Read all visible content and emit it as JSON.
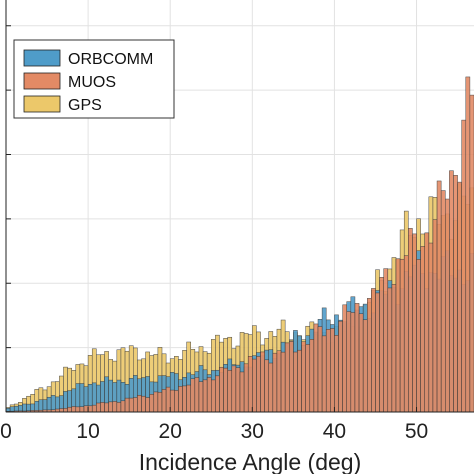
{
  "chart_data": {
    "type": "bar",
    "xlabel": "Incidence Angle (deg)",
    "ylabel": "",
    "title": "",
    "bin_width_deg": 0.5,
    "xlim": [
      0,
      57
    ],
    "ylim": [
      0,
      6.4
    ],
    "x_ticks": [
      0,
      10,
      20,
      30,
      40,
      50
    ],
    "x_tick_labels": [
      "0",
      "10",
      "20",
      "30",
      "40",
      "50"
    ],
    "y_ticks": [
      1,
      2,
      3,
      4,
      5,
      6
    ],
    "grid": true,
    "legend_position": "top-left",
    "series": [
      {
        "name": "ORBCOMM",
        "color": "#4f9cc9",
        "x": [
          0,
          5,
          10,
          15,
          20,
          25,
          30,
          35,
          40,
          45,
          50,
          55
        ],
        "values": [
          0.05,
          0.2,
          0.45,
          0.5,
          0.55,
          0.65,
          0.8,
          1.1,
          1.5,
          1.7,
          2.2,
          2.2
        ]
      },
      {
        "name": "MUOS",
        "color": "#e38a65",
        "x": [
          0,
          5,
          10,
          15,
          20,
          25,
          30,
          35,
          40,
          45,
          47.5,
          50,
          52.5,
          55,
          57
        ],
        "values": [
          0.01,
          0.03,
          0.1,
          0.2,
          0.35,
          0.55,
          0.8,
          1.0,
          1.35,
          1.8,
          2.3,
          2.6,
          3.0,
          4.0,
          5.0
        ]
      },
      {
        "name": "GPS",
        "color": "#ecc86a",
        "x": [
          0,
          5,
          10,
          15,
          20,
          25,
          30,
          35,
          40,
          43,
          45,
          50,
          53,
          55
        ],
        "values": [
          0.05,
          0.4,
          0.85,
          0.95,
          0.85,
          1.05,
          1.2,
          1.25,
          1.2,
          1.35,
          1.9,
          3.0,
          3.0,
          3.2
        ]
      }
    ]
  }
}
